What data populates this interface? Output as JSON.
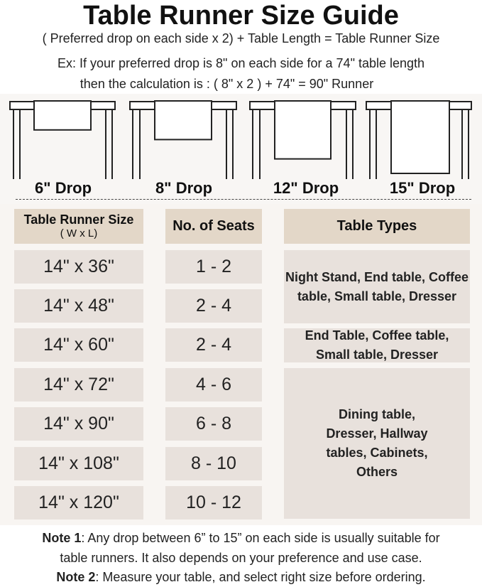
{
  "title": "Table Runner Size Guide",
  "formula": "( Preferred drop on each side x 2) + Table Length = Table Runner Size",
  "example_line1": "Ex: If your preferred drop is 8\" on each side for a 74\" table length",
  "example_line2": "then the calculation is : ( 8\" x 2 ) + 74\" = 90\" Runner",
  "drops": [
    {
      "inches": 6,
      "label": "6\" Drop"
    },
    {
      "inches": 8,
      "label": "8\" Drop"
    },
    {
      "inches": 12,
      "label": "12\" Drop"
    },
    {
      "inches": 15,
      "label": "15\" Drop"
    }
  ],
  "table": {
    "headers": {
      "size": "Table Runner Size",
      "size_sub": "( W x L)",
      "seats": "No. of Seats",
      "types": "Table Types"
    },
    "rows": [
      {
        "size": "14\" x 36\"",
        "seats": "1 - 2"
      },
      {
        "size": "14\" x 48\"",
        "seats": "2 - 4"
      },
      {
        "size": "14\" x 60\"",
        "seats": "2 - 4"
      },
      {
        "size": "14\" x 72\"",
        "seats": "4 - 6"
      },
      {
        "size": "14\" x 90\"",
        "seats": "6 - 8"
      },
      {
        "size": "14\" x 108\"",
        "seats": "8 - 10"
      },
      {
        "size": "14\" x 120\"",
        "seats": "10 - 12"
      }
    ],
    "types": [
      {
        "rows": "1-2",
        "text": "Night Stand, End table, Coffee table, Small table, Dresser"
      },
      {
        "rows": "3",
        "text": "End Table, Coffee table, Small table, Dresser"
      },
      {
        "rows": "4-7",
        "text": "Dining table, Dresser, Hallway tables, Cabinets, Others"
      }
    ]
  },
  "notes": [
    {
      "label": "Note 1",
      "text": ": Any drop between 6” to 15” on each side is usually suitable for",
      "text2": "table runners. It also depends on your preference and use case."
    },
    {
      "label": "Note 2",
      "text": ": Measure your table, and select right size before ordering."
    }
  ],
  "colors": {
    "header_cell": "#e3d7c8",
    "body_cell": "#e8e1dc",
    "panel": "#f8f5f2"
  }
}
